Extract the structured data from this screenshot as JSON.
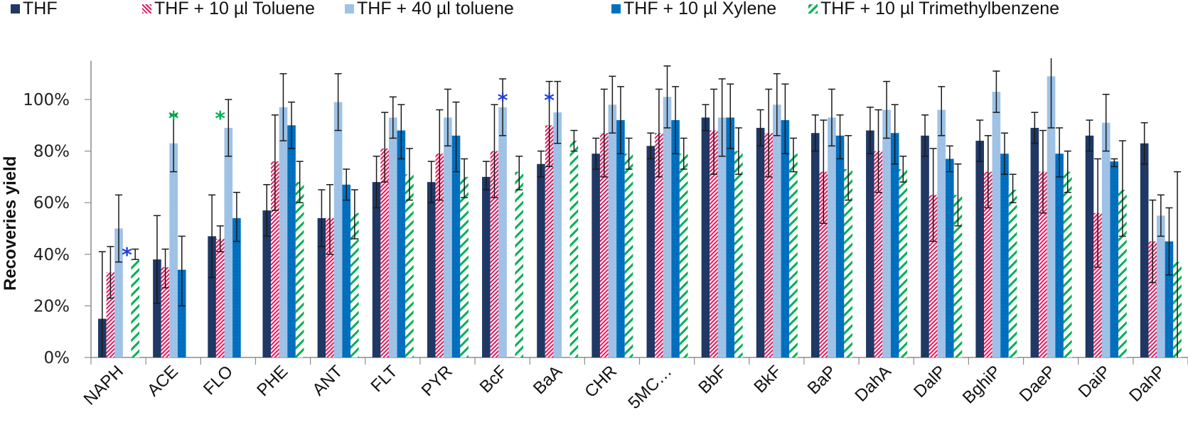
{
  "chart_data": {
    "type": "bar",
    "title": "",
    "xlabel": "",
    "ylabel": "Recoveries  yield",
    "ylim": [
      0,
      1.15
    ],
    "yticks": [
      0,
      0.2,
      0.4,
      0.6,
      0.8,
      1.0
    ],
    "ytick_labels": [
      "0%",
      "20%",
      "40%",
      "60%",
      "80%",
      "100%"
    ],
    "grid": false,
    "legend_position": "top",
    "categories": [
      "NAPH",
      "ACE",
      "FLO",
      "PHE",
      "ANT",
      "FLT",
      "PYR",
      "BcF",
      "BaA",
      "CHR",
      "5MC…",
      "BbF",
      "BkF",
      "BaP",
      "DahA",
      "DalP",
      "BghiP",
      "DaeP",
      "DaiP",
      "DahP"
    ],
    "series": [
      {
        "name": "THF",
        "color": "#1f3864",
        "pattern": "solid",
        "values": [
          0.15,
          0.38,
          0.47,
          0.57,
          0.54,
          0.68,
          0.68,
          0.7,
          0.75,
          0.79,
          0.82,
          0.93,
          0.89,
          0.87,
          0.88,
          0.86,
          0.84,
          0.89,
          0.86,
          0.83
        ],
        "err_low": [
          0.0,
          0.21,
          0.31,
          0.47,
          0.43,
          0.58,
          0.6,
          0.65,
          0.7,
          0.73,
          0.77,
          0.88,
          0.82,
          0.8,
          0.79,
          0.78,
          0.76,
          0.83,
          0.8,
          0.75
        ],
        "err_high": [
          0.41,
          0.55,
          0.63,
          0.67,
          0.65,
          0.78,
          0.76,
          0.76,
          0.8,
          0.85,
          0.87,
          0.98,
          0.96,
          0.94,
          0.97,
          0.94,
          0.92,
          0.95,
          0.92,
          0.91
        ]
      },
      {
        "name": "THF + 10 µl Toluene",
        "color": "#e8175d",
        "pattern": "hatch-dense",
        "values": [
          0.33,
          0.35,
          0.46,
          0.76,
          0.54,
          0.81,
          0.79,
          0.8,
          0.9,
          0.87,
          0.87,
          0.88,
          0.87,
          0.72,
          0.8,
          0.63,
          0.72,
          0.72,
          0.56,
          0.45
        ],
        "err_low": [
          0.23,
          0.27,
          0.41,
          0.57,
          0.4,
          0.68,
          0.61,
          0.62,
          0.74,
          0.7,
          0.7,
          0.71,
          0.7,
          0.52,
          0.64,
          0.45,
          0.58,
          0.56,
          0.35,
          0.29
        ],
        "err_high": [
          0.43,
          0.42,
          0.51,
          0.94,
          0.67,
          0.95,
          0.96,
          0.98,
          1.07,
          1.04,
          1.04,
          1.04,
          1.04,
          0.92,
          0.96,
          0.81,
          0.86,
          0.88,
          0.77,
          0.61
        ]
      },
      {
        "name": "THF + 40 µl toluene",
        "color": "#9dc3e6",
        "pattern": "dotted",
        "values": [
          0.5,
          0.83,
          0.89,
          0.97,
          0.99,
          0.93,
          0.93,
          0.97,
          0.95,
          0.98,
          1.01,
          0.93,
          0.98,
          0.93,
          0.96,
          0.96,
          1.03,
          1.09,
          0.91,
          0.55
        ],
        "err_low": [
          0.37,
          0.72,
          0.78,
          0.84,
          0.88,
          0.85,
          0.82,
          0.86,
          0.83,
          0.87,
          0.89,
          0.78,
          0.86,
          0.82,
          0.85,
          0.86,
          0.95,
          0.89,
          0.8,
          0.47
        ],
        "err_high": [
          0.63,
          0.94,
          1.0,
          1.1,
          1.1,
          1.01,
          1.04,
          1.08,
          1.07,
          1.09,
          1.13,
          1.08,
          1.1,
          1.04,
          1.07,
          1.05,
          1.11,
          1.16,
          1.02,
          0.63
        ]
      },
      {
        "name": "THF + 10 µl Xylene",
        "color": "#0070c0",
        "pattern": "dotted",
        "values": [
          null,
          0.34,
          0.54,
          0.9,
          0.67,
          0.88,
          0.86,
          null,
          null,
          0.92,
          0.92,
          0.93,
          0.92,
          0.86,
          0.87,
          0.77,
          0.79,
          0.79,
          0.76,
          0.45
        ],
        "err_low": [
          null,
          0.2,
          0.45,
          0.81,
          0.61,
          0.77,
          0.72,
          null,
          null,
          0.79,
          0.79,
          0.81,
          0.79,
          0.77,
          0.75,
          0.72,
          0.71,
          0.7,
          0.74,
          0.32
        ],
        "err_high": [
          null,
          0.47,
          0.64,
          0.99,
          0.73,
          0.98,
          0.99,
          null,
          null,
          1.05,
          1.05,
          1.06,
          1.06,
          0.94,
          0.98,
          0.82,
          0.87,
          0.89,
          0.77,
          0.58
        ]
      },
      {
        "name": "THF + 10 µl Trimethylbenzene",
        "color": "#00b050",
        "pattern": "hatch-wide",
        "values": [
          0.38,
          null,
          null,
          0.68,
          0.56,
          0.71,
          0.7,
          0.72,
          0.84,
          0.79,
          0.79,
          0.8,
          0.79,
          0.73,
          0.73,
          0.63,
          0.65,
          0.72,
          0.65,
          0.37
        ],
        "err_low": [
          0.38,
          null,
          null,
          0.6,
          0.46,
          0.61,
          0.62,
          0.65,
          0.8,
          0.73,
          0.73,
          0.71,
          0.72,
          0.61,
          0.68,
          0.51,
          0.6,
          0.64,
          0.47,
          0.0
        ],
        "err_high": [
          0.42,
          null,
          null,
          0.76,
          0.65,
          0.81,
          0.77,
          0.78,
          0.88,
          0.85,
          0.85,
          0.89,
          0.85,
          0.86,
          0.78,
          0.75,
          0.71,
          0.8,
          0.84,
          0.72
        ]
      }
    ],
    "annotations": [
      {
        "text": "*",
        "category": "NAPH",
        "value": 0.41,
        "color": "#1f3fd0",
        "near_series": "THF + 10 µl Xylene"
      },
      {
        "text": "*",
        "category": "ACE",
        "value": 0.94,
        "color": "#00b050",
        "near_series": "THF + 40 µl toluene"
      },
      {
        "text": "*",
        "category": "FLO",
        "value": 0.94,
        "color": "#00b050",
        "near_series": "THF + 10 µl Toluene"
      },
      {
        "text": "*",
        "category": "BcF",
        "value": 1.01,
        "color": "#1f3fd0",
        "near_series": "THF + 40 µl toluene"
      },
      {
        "text": "*",
        "category": "BaA",
        "value": 1.01,
        "color": "#1f3fd0",
        "near_series": "THF + 10 µl Toluene"
      }
    ]
  }
}
